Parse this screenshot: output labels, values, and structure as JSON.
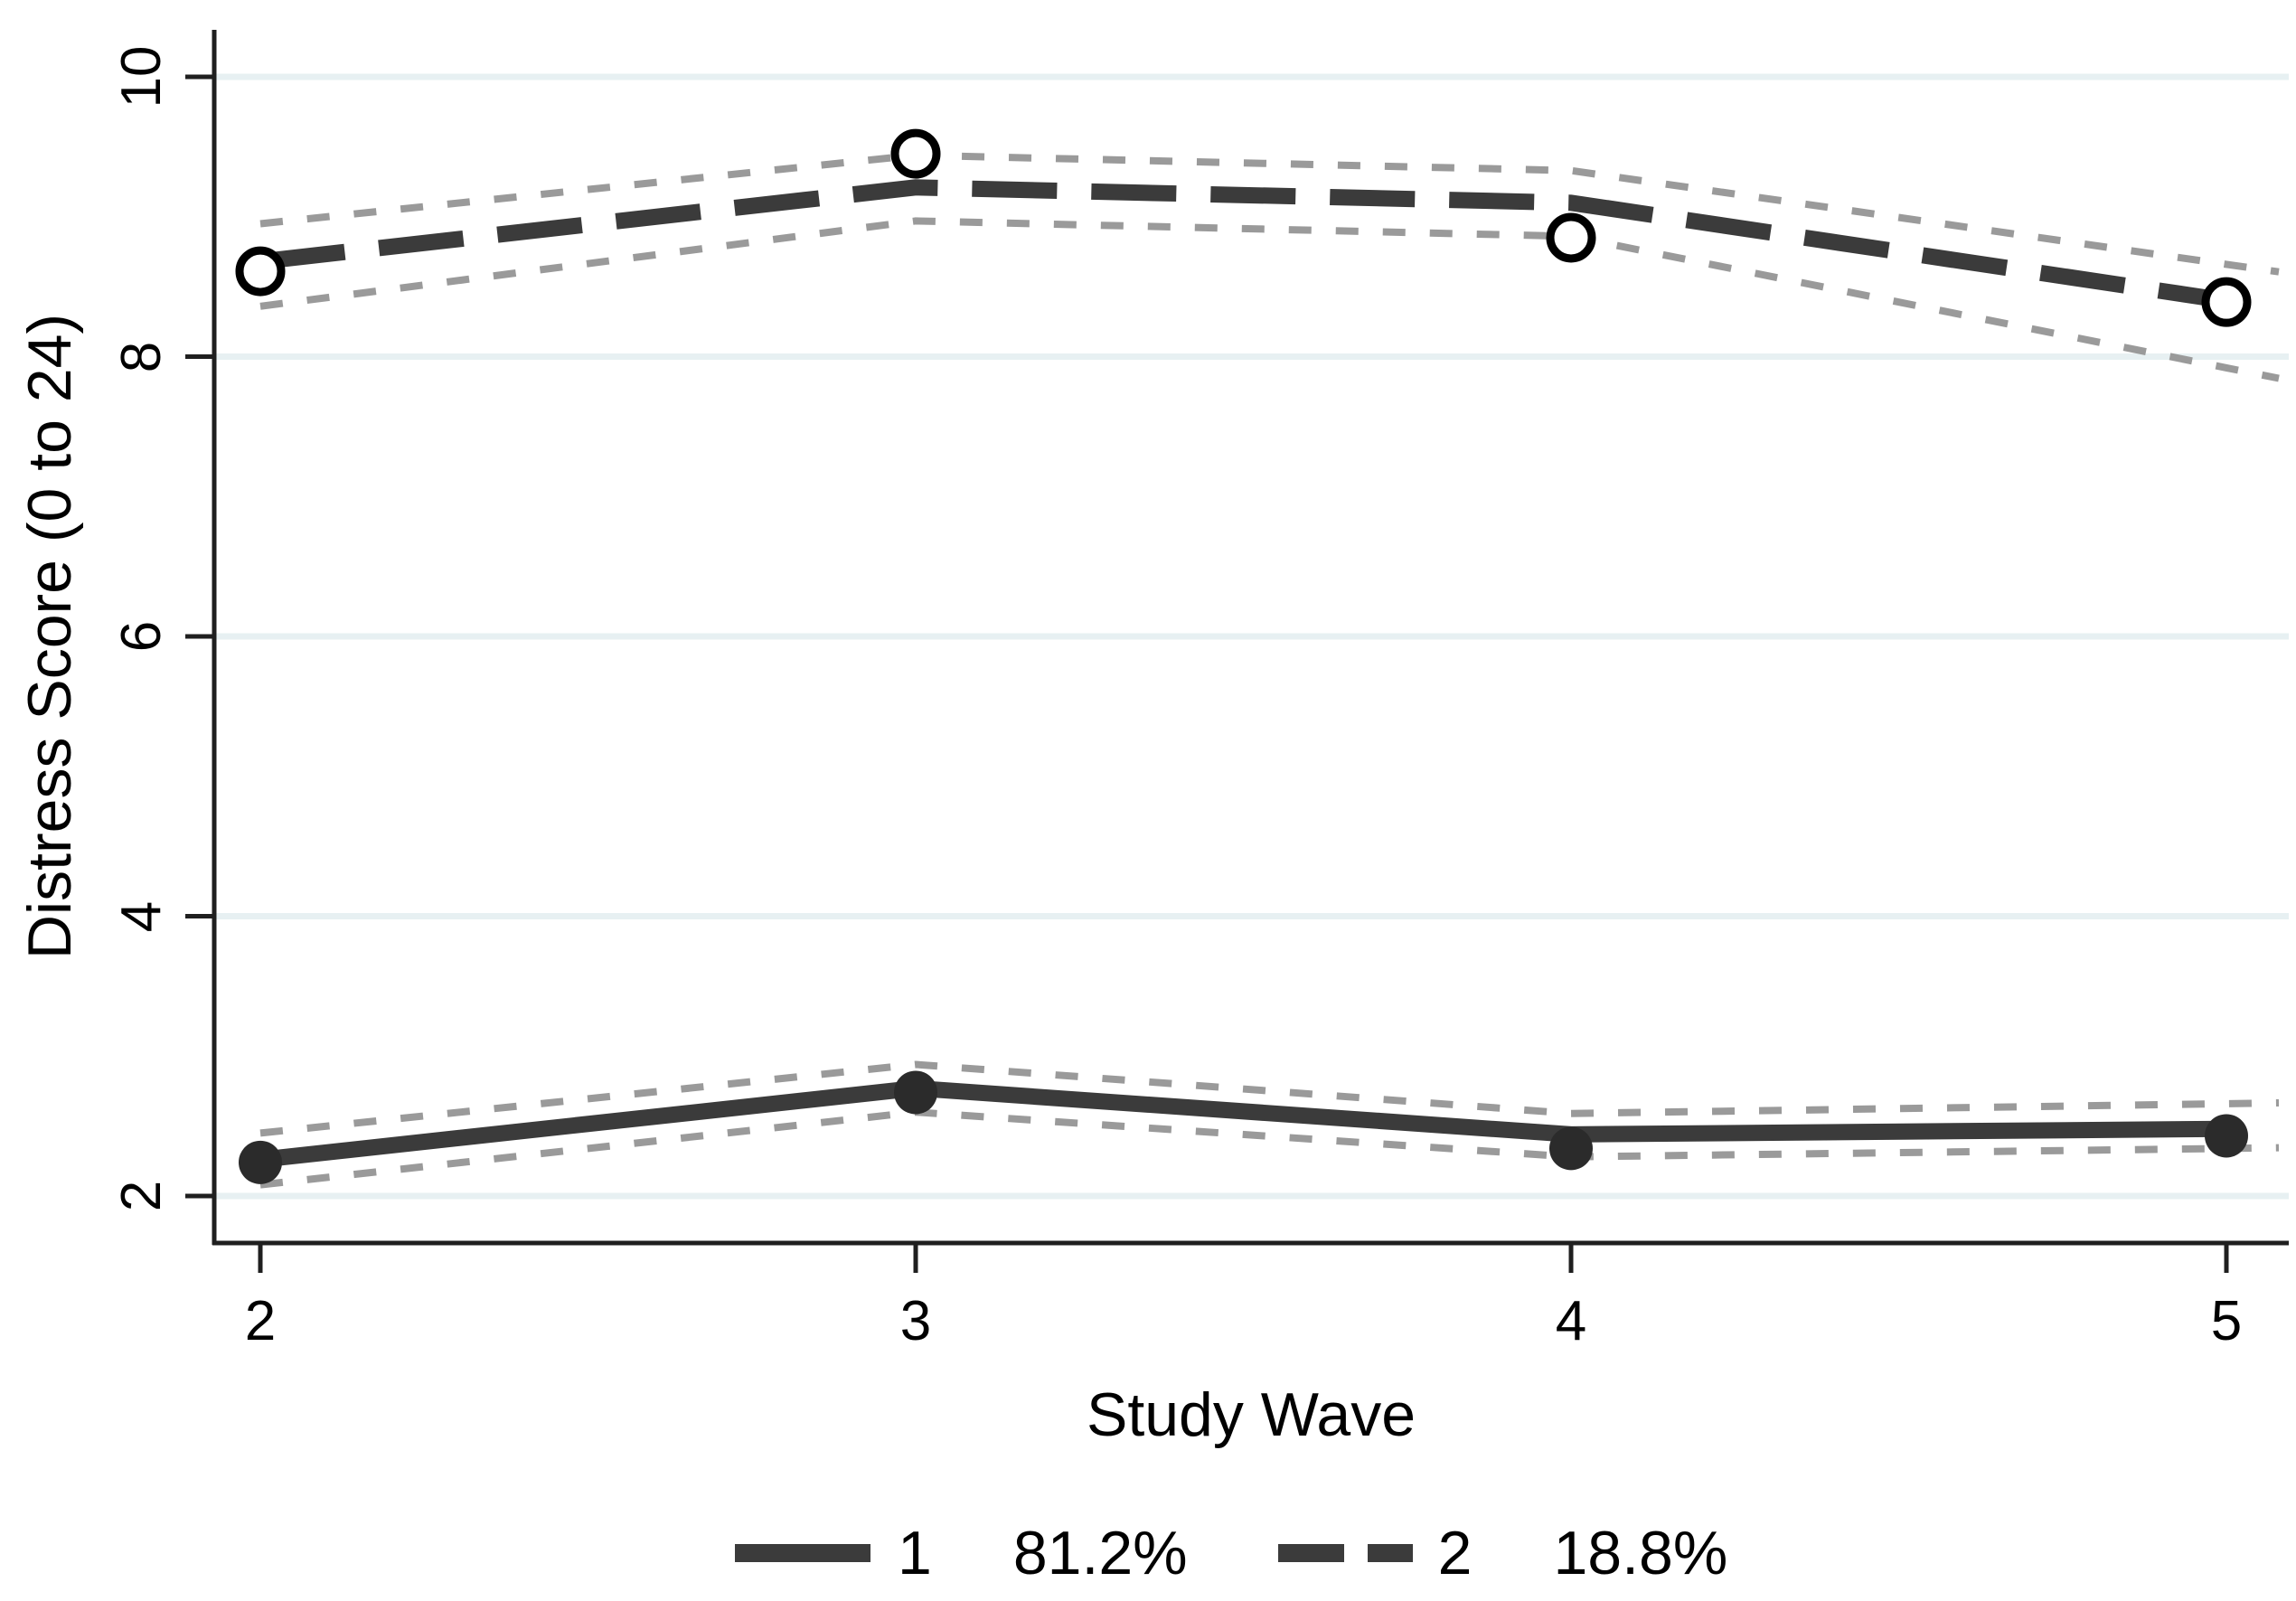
{
  "chart_data": {
    "type": "line",
    "title": "",
    "xlabel": "Study Wave",
    "ylabel": "Distress Score (0 to 24)",
    "x": [
      2,
      3,
      4,
      5
    ],
    "xtick_labels": [
      "2",
      "3",
      "4",
      "5"
    ],
    "xtick_values": [
      2,
      3,
      4,
      5
    ],
    "ytick_labels": [
      "10",
      "8",
      "6",
      "4",
      "2"
    ],
    "ytick_values": [
      10,
      8,
      6,
      4,
      2
    ],
    "xlim": [
      1.93,
      5.1
    ],
    "ylim": [
      1.66,
      10.34
    ],
    "grid": "horizontal-only",
    "legend_position": "bottom-center",
    "series": [
      {
        "name": "1",
        "share": "81.2%",
        "line_style": "solid",
        "marker": "filled-circle",
        "line_values": [
          2.26,
          2.77,
          2.44,
          2.48
        ],
        "marker_values": [
          2.24,
          2.74,
          2.34,
          2.43
        ],
        "ci_upper": [
          2.45,
          2.94,
          2.59,
          2.66
        ],
        "ci_lower": [
          2.08,
          2.6,
          2.28,
          2.34
        ]
      },
      {
        "name": "2",
        "share": "18.8%",
        "line_style": "dashed",
        "marker": "open-circle",
        "line_values": [
          8.68,
          9.21,
          9.1,
          8.4
        ],
        "marker_values": [
          8.61,
          9.45,
          8.85,
          8.39
        ],
        "ci_upper": [
          8.95,
          9.44,
          9.33,
          8.66
        ],
        "ci_lower": [
          8.36,
          8.97,
          8.86,
          7.92
        ]
      }
    ],
    "legend": [
      {
        "label": "1",
        "value": "81.2%",
        "swatch": "solid-line"
      },
      {
        "label": "2",
        "value": "18.8%",
        "swatch": "dashed-line"
      }
    ]
  },
  "colors": {
    "line": "#3b3b3b",
    "ci_band": "#9a9a9a",
    "grid": "#e7f0f2",
    "axis": "#1f1f1f",
    "marker_fill": "#2b2b2b",
    "marker_open_stroke": "#000000",
    "text": "#000000",
    "background": "#ffffff"
  }
}
